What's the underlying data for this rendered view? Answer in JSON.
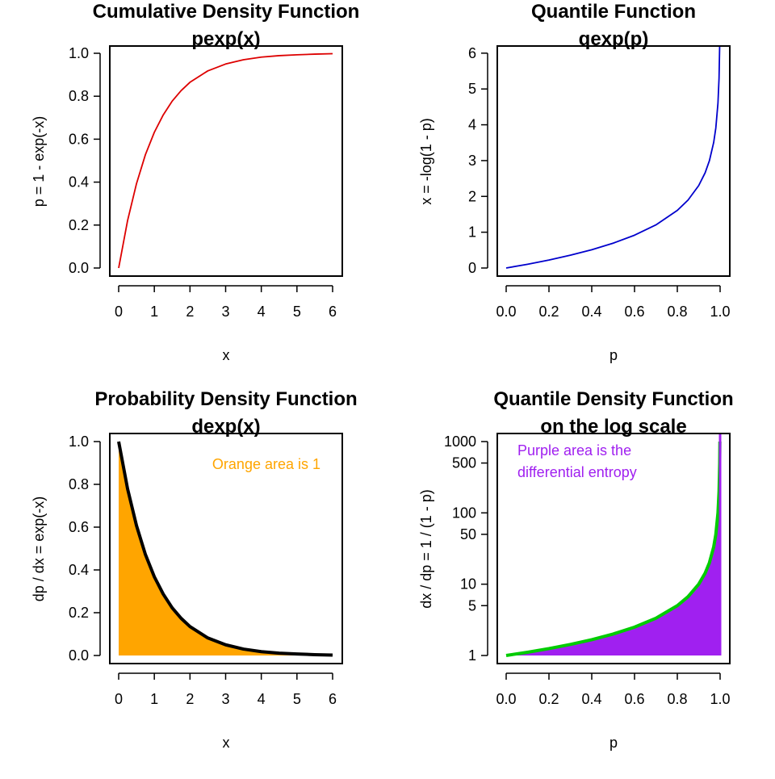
{
  "chart_data": [
    {
      "id": "cdf",
      "type": "line",
      "title": "Cumulative Density Function",
      "subtitle": "pexp(x)",
      "xlabel": "x",
      "ylabel": "p = 1 - exp(-x)",
      "xlim": [
        0,
        6
      ],
      "ylim": [
        0,
        1
      ],
      "xticks": [
        "0",
        "1",
        "2",
        "3",
        "4",
        "5",
        "6"
      ],
      "yticks": [
        "0.0",
        "0.2",
        "0.4",
        "0.6",
        "0.8",
        "1.0"
      ],
      "series": [
        {
          "color": "#dd0000",
          "x": [
            0,
            0.25,
            0.5,
            0.75,
            1,
            1.25,
            1.5,
            1.75,
            2,
            2.5,
            3,
            3.5,
            4,
            4.5,
            5,
            5.5,
            6
          ],
          "y": [
            0,
            0.221,
            0.393,
            0.528,
            0.632,
            0.713,
            0.777,
            0.826,
            0.865,
            0.918,
            0.95,
            0.97,
            0.982,
            0.989,
            0.993,
            0.996,
            0.998
          ]
        }
      ],
      "grid": false
    },
    {
      "id": "quantile",
      "type": "line",
      "title": "Quantile Function",
      "subtitle": "qexp(p)",
      "xlabel": "p",
      "ylabel": "x = -log(1 - p)",
      "xlim": [
        0,
        1
      ],
      "ylim": [
        0,
        6.2
      ],
      "xticks": [
        "0.0",
        "0.2",
        "0.4",
        "0.6",
        "0.8",
        "1.0"
      ],
      "yticks": [
        "0",
        "1",
        "2",
        "3",
        "4",
        "5",
        "6"
      ],
      "series": [
        {
          "color": "#0000cc",
          "x": [
            0,
            0.1,
            0.2,
            0.3,
            0.4,
            0.5,
            0.6,
            0.7,
            0.8,
            0.85,
            0.9,
            0.93,
            0.95,
            0.97,
            0.98,
            0.99,
            0.995,
            0.998
          ],
          "y": [
            0,
            0.105,
            0.223,
            0.357,
            0.511,
            0.693,
            0.916,
            1.204,
            1.609,
            1.897,
            2.303,
            2.659,
            2.996,
            3.507,
            3.912,
            4.605,
            5.298,
            6.215
          ]
        }
      ],
      "grid": false
    },
    {
      "id": "pdf",
      "type": "area",
      "title": "Probability Density Function",
      "subtitle": "dexp(x)",
      "xlabel": "x",
      "ylabel": "dp / dx = exp(-x)",
      "xlim": [
        0,
        6
      ],
      "ylim": [
        0,
        1
      ],
      "xticks": [
        "0",
        "1",
        "2",
        "3",
        "4",
        "5",
        "6"
      ],
      "yticks": [
        "0.0",
        "0.2",
        "0.4",
        "0.6",
        "0.8",
        "1.0"
      ],
      "annotation": "Orange area is 1",
      "annotation_color": "#ffa500",
      "fill_color": "#ffa500",
      "series": [
        {
          "color": "#000000",
          "x": [
            0,
            0.25,
            0.5,
            0.75,
            1,
            1.25,
            1.5,
            1.75,
            2,
            2.5,
            3,
            3.5,
            4,
            4.5,
            5,
            5.5,
            6
          ],
          "y": [
            1,
            0.779,
            0.607,
            0.472,
            0.368,
            0.287,
            0.223,
            0.174,
            0.135,
            0.082,
            0.05,
            0.03,
            0.018,
            0.011,
            0.007,
            0.004,
            0.002
          ]
        }
      ],
      "grid": false
    },
    {
      "id": "qdf",
      "type": "area",
      "title": "Quantile Density Function",
      "subtitle": "on the log scale",
      "xlabel": "p",
      "ylabel": "dx / dp = 1 / (1 - p)",
      "xlim": [
        0,
        1
      ],
      "ylim": [
        1,
        1000
      ],
      "ylog": true,
      "xticks": [
        "0.0",
        "0.2",
        "0.4",
        "0.6",
        "0.8",
        "1.0"
      ],
      "yticks": [
        {
          "label": "1",
          "value": 1
        },
        {
          "label": "5",
          "value": 5
        },
        {
          "label": "10",
          "value": 10
        },
        {
          "label": "50",
          "value": 50
        },
        {
          "label": "100",
          "value": 100
        },
        {
          "label": "500",
          "value": 500
        },
        {
          "label": "1000",
          "value": 1000
        }
      ],
      "annotation_lines": [
        "Purple area is the",
        "differential entropy"
      ],
      "annotation_color": "#a020f0",
      "fill_color": "#a020f0",
      "series": [
        {
          "color": "#00cc00",
          "x": [
            0,
            0.1,
            0.2,
            0.3,
            0.4,
            0.5,
            0.6,
            0.7,
            0.8,
            0.85,
            0.9,
            0.93,
            0.95,
            0.97,
            0.98,
            0.99,
            0.995,
            0.998,
            0.999
          ],
          "y": [
            1,
            1.111,
            1.25,
            1.429,
            1.667,
            2,
            2.5,
            3.333,
            5,
            6.667,
            10,
            14.29,
            20,
            33.33,
            50,
            100,
            200,
            500,
            1000
          ]
        }
      ],
      "grid": false
    }
  ]
}
